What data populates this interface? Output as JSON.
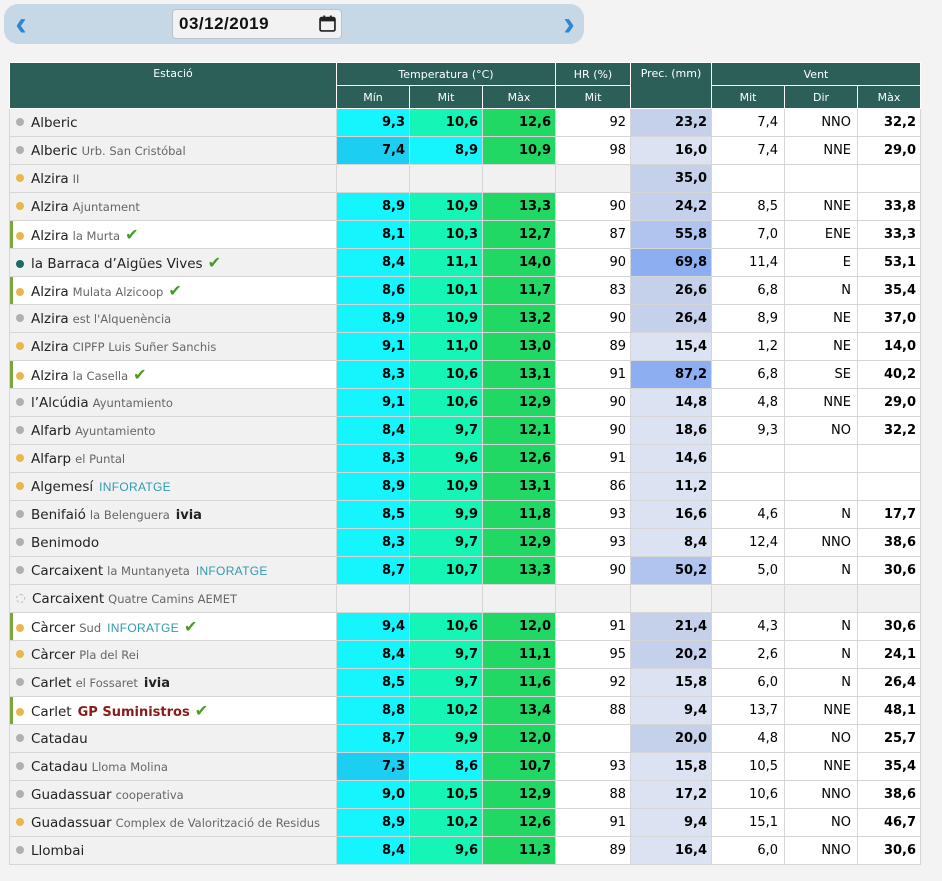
{
  "date": "03/12/2019",
  "icons": {
    "prev": "chevron-left-icon",
    "next": "chevron-right-icon",
    "calendar": "calendar-icon",
    "check": "check-icon"
  },
  "colors": {
    "header": "#2b5f57",
    "tmin_normal": "#15f5fd",
    "tmin_low": "#1bcef2",
    "tmid_normal": "#15f5b5",
    "tmid_low": "#15f5fd",
    "tmax": "#22d864",
    "prec_light": "#dbe3f2",
    "prec_mid": "#c5d0ea",
    "prec_high": "#b1c4ef",
    "prec_max": "#8eaef2",
    "highlight": "#7aa640"
  },
  "headers": {
    "estacio": "Estació",
    "temp": "Temperatura (°C)",
    "hr": "HR (%)",
    "prec": "Prec. (mm)",
    "vent": "Vent",
    "min": "Mín",
    "mit": "Mit",
    "max": "Màx",
    "hr_mit": "Mit",
    "vent_mit": "Mit",
    "vent_dir": "Dir",
    "vent_max": "Màx"
  },
  "rows": [
    {
      "station": "Alberic",
      "loc": "",
      "brand": "",
      "check": false,
      "dot": "gray",
      "hl": false,
      "tmin": "9,3",
      "tmid": "10,6",
      "tmax": "12,6",
      "hr": "92",
      "prec": "23,2",
      "pcol": "mid",
      "vmit": "7,4",
      "vdir": "NNO",
      "vmax": "32,2",
      "cold": false
    },
    {
      "station": "Alberic",
      "loc": "Urb. San Cristóbal",
      "brand": "",
      "check": false,
      "dot": "gray",
      "hl": false,
      "tmin": "7,4",
      "tmid": "8,9",
      "tmax": "10,9",
      "hr": "98",
      "prec": "16,0",
      "pcol": "light",
      "vmit": "7,4",
      "vdir": "NNE",
      "vmax": "29,0",
      "cold": true
    },
    {
      "station": "Alzira",
      "loc": "II",
      "brand": "",
      "check": false,
      "dot": "yellow",
      "hl": false,
      "tmin": "",
      "tmid": "",
      "tmax": "",
      "hr": "",
      "prec": "35,0",
      "pcol": "mid",
      "vmit": "",
      "vdir": "",
      "vmax": "",
      "cold": false,
      "empty": true
    },
    {
      "station": "Alzira",
      "loc": "Ajuntament",
      "brand": "",
      "check": false,
      "dot": "yellow",
      "hl": false,
      "tmin": "8,9",
      "tmid": "10,9",
      "tmax": "13,3",
      "hr": "90",
      "prec": "24,2",
      "pcol": "mid",
      "vmit": "8,5",
      "vdir": "NNE",
      "vmax": "33,8",
      "cold": false
    },
    {
      "station": "Alzira",
      "loc": "la Murta",
      "brand": "",
      "check": true,
      "dot": "yellow",
      "hl": true,
      "tmin": "8,1",
      "tmid": "10,3",
      "tmax": "12,7",
      "hr": "87",
      "prec": "55,8",
      "pcol": "high",
      "vmit": "7,0",
      "vdir": "ENE",
      "vmax": "33,3",
      "cold": false
    },
    {
      "station": "la Barraca d’Aigües Vives",
      "loc": "",
      "brand": "",
      "check": true,
      "dot": "teal",
      "hl": false,
      "tmin": "8,4",
      "tmid": "11,1",
      "tmax": "14,0",
      "hr": "90",
      "prec": "69,8",
      "pcol": "max",
      "vmit": "11,4",
      "vdir": "E",
      "vmax": "53,1",
      "cold": false
    },
    {
      "station": "Alzira",
      "loc": "Mulata Alzicoop",
      "brand": "",
      "check": true,
      "dot": "yellow",
      "hl": true,
      "tmin": "8,6",
      "tmid": "10,1",
      "tmax": "11,7",
      "hr": "83",
      "prec": "26,6",
      "pcol": "mid",
      "vmit": "6,8",
      "vdir": "N",
      "vmax": "35,4",
      "cold": false
    },
    {
      "station": "Alzira",
      "loc": "est l'Alquenència",
      "brand": "",
      "check": false,
      "dot": "gray",
      "hl": false,
      "tmin": "8,9",
      "tmid": "10,9",
      "tmax": "13,2",
      "hr": "90",
      "prec": "26,4",
      "pcol": "mid",
      "vmit": "8,9",
      "vdir": "NE",
      "vmax": "37,0",
      "cold": false
    },
    {
      "station": "Alzira",
      "loc": "CIPFP Luis Suñer Sanchis",
      "brand": "",
      "check": false,
      "dot": "yellow",
      "hl": false,
      "tmin": "9,1",
      "tmid": "11,0",
      "tmax": "13,0",
      "hr": "89",
      "prec": "15,4",
      "pcol": "light",
      "vmit": "1,2",
      "vdir": "NE",
      "vmax": "14,0",
      "cold": false
    },
    {
      "station": "Alzira",
      "loc": "la Casella",
      "brand": "",
      "check": true,
      "dot": "yellow",
      "hl": true,
      "tmin": "8,3",
      "tmid": "10,6",
      "tmax": "13,1",
      "hr": "91",
      "prec": "87,2",
      "pcol": "max",
      "vmit": "6,8",
      "vdir": "SE",
      "vmax": "40,2",
      "cold": false
    },
    {
      "station": "l’Alcúdia",
      "loc": "Ayuntamiento",
      "brand": "",
      "check": false,
      "dot": "gray",
      "hl": false,
      "tmin": "9,1",
      "tmid": "10,6",
      "tmax": "12,9",
      "hr": "90",
      "prec": "14,8",
      "pcol": "light",
      "vmit": "4,8",
      "vdir": "NNE",
      "vmax": "29,0",
      "cold": false
    },
    {
      "station": "Alfarb",
      "loc": "Ayuntamiento",
      "brand": "",
      "check": false,
      "dot": "gray",
      "hl": false,
      "tmin": "8,4",
      "tmid": "9,7",
      "tmax": "12,1",
      "hr": "90",
      "prec": "18,6",
      "pcol": "light",
      "vmit": "9,3",
      "vdir": "NO",
      "vmax": "32,2",
      "cold": false
    },
    {
      "station": "Alfarp",
      "loc": "el Puntal",
      "brand": "",
      "check": false,
      "dot": "yellow",
      "hl": false,
      "tmin": "8,3",
      "tmid": "9,6",
      "tmax": "12,6",
      "hr": "91",
      "prec": "14,6",
      "pcol": "light",
      "vmit": "",
      "vdir": "",
      "vmax": "",
      "cold": false
    },
    {
      "station": "Algemesí",
      "loc": "",
      "brand": "INFORATGE",
      "check": false,
      "dot": "yellow",
      "hl": false,
      "tmin": "8,9",
      "tmid": "10,9",
      "tmax": "13,1",
      "hr": "86",
      "prec": "11,2",
      "pcol": "light",
      "vmit": "",
      "vdir": "",
      "vmax": "",
      "cold": false
    },
    {
      "station": "Benifaió",
      "loc": "la Belenguera",
      "brand": "ivia",
      "check": false,
      "dot": "gray",
      "hl": false,
      "tmin": "8,5",
      "tmid": "9,9",
      "tmax": "11,8",
      "hr": "93",
      "prec": "16,6",
      "pcol": "light",
      "vmit": "4,6",
      "vdir": "N",
      "vmax": "17,7",
      "cold": false
    },
    {
      "station": "Benimodo",
      "loc": "",
      "brand": "",
      "check": false,
      "dot": "gray",
      "hl": false,
      "tmin": "8,3",
      "tmid": "9,7",
      "tmax": "12,9",
      "hr": "93",
      "prec": "8,4",
      "pcol": "light",
      "vmit": "12,4",
      "vdir": "NNO",
      "vmax": "38,6",
      "cold": false
    },
    {
      "station": "Carcaixent",
      "loc": "la Muntanyeta",
      "brand": "INFORATGE",
      "check": false,
      "dot": "gray",
      "hl": false,
      "tmin": "8,7",
      "tmid": "10,7",
      "tmax": "13,3",
      "hr": "90",
      "prec": "50,2",
      "pcol": "high",
      "vmit": "5,0",
      "vdir": "N",
      "vmax": "30,6",
      "cold": false
    },
    {
      "station": "Carcaixent",
      "loc": "Quatre Camins AEMET",
      "brand": "",
      "check": false,
      "dot": "empty",
      "hl": false,
      "tmin": "",
      "tmid": "",
      "tmax": "",
      "hr": "",
      "prec": "",
      "pcol": "none",
      "vmit": "",
      "vdir": "",
      "vmax": "",
      "cold": false,
      "empty": true
    },
    {
      "station": "Càrcer",
      "loc": "Sud",
      "brand": "INFORATGE",
      "check": true,
      "dot": "yellow",
      "hl": true,
      "tmin": "9,4",
      "tmid": "10,6",
      "tmax": "12,0",
      "hr": "91",
      "prec": "21,4",
      "pcol": "mid",
      "vmit": "4,3",
      "vdir": "N",
      "vmax": "30,6",
      "cold": false
    },
    {
      "station": "Càrcer",
      "loc": "Pla del Rei",
      "brand": "",
      "check": false,
      "dot": "yellow",
      "hl": false,
      "tmin": "8,4",
      "tmid": "9,7",
      "tmax": "11,1",
      "hr": "95",
      "prec": "20,2",
      "pcol": "mid",
      "vmit": "2,6",
      "vdir": "N",
      "vmax": "24,1",
      "cold": false
    },
    {
      "station": "Carlet",
      "loc": "el Fossaret",
      "brand": "ivia",
      "check": false,
      "dot": "gray",
      "hl": false,
      "tmin": "8,5",
      "tmid": "9,7",
      "tmax": "11,6",
      "hr": "92",
      "prec": "15,8",
      "pcol": "light",
      "vmit": "6,0",
      "vdir": "N",
      "vmax": "26,4",
      "cold": false
    },
    {
      "station": "Carlet",
      "loc": "",
      "brand": "GP",
      "check": true,
      "dot": "yellow",
      "hl": true,
      "tmin": "8,8",
      "tmid": "10,2",
      "tmax": "13,4",
      "hr": "88",
      "prec": "9,4",
      "pcol": "light",
      "vmit": "13,7",
      "vdir": "NNE",
      "vmax": "48,1",
      "cold": false
    },
    {
      "station": "Catadau",
      "loc": "",
      "brand": "",
      "check": false,
      "dot": "gray",
      "hl": false,
      "tmin": "8,7",
      "tmid": "9,9",
      "tmax": "12,0",
      "hr": "",
      "prec": "20,0",
      "pcol": "mid",
      "vmit": "4,8",
      "vdir": "NO",
      "vmax": "25,7",
      "cold": false
    },
    {
      "station": "Catadau",
      "loc": "Lloma Molina",
      "brand": "",
      "check": false,
      "dot": "gray",
      "hl": false,
      "tmin": "7,3",
      "tmid": "8,6",
      "tmax": "10,7",
      "hr": "93",
      "prec": "15,8",
      "pcol": "light",
      "vmit": "10,5",
      "vdir": "NNE",
      "vmax": "35,4",
      "cold": true
    },
    {
      "station": "Guadassuar",
      "loc": "cooperativa",
      "brand": "",
      "check": false,
      "dot": "gray",
      "hl": false,
      "tmin": "9,0",
      "tmid": "10,5",
      "tmax": "12,9",
      "hr": "88",
      "prec": "17,2",
      "pcol": "light",
      "vmit": "10,6",
      "vdir": "NNO",
      "vmax": "38,6",
      "cold": false
    },
    {
      "station": "Guadassuar",
      "loc": "Complex de Valorització de Residus",
      "brand": "",
      "check": false,
      "dot": "yellow",
      "hl": false,
      "tmin": "8,9",
      "tmid": "10,2",
      "tmax": "12,6",
      "hr": "91",
      "prec": "9,4",
      "pcol": "light",
      "vmit": "15,1",
      "vdir": "NO",
      "vmax": "46,7",
      "cold": false
    },
    {
      "station": "Llombai",
      "loc": "",
      "brand": "",
      "check": false,
      "dot": "gray",
      "hl": false,
      "tmin": "8,4",
      "tmid": "9,6",
      "tmax": "11,3",
      "hr": "89",
      "prec": "16,4",
      "pcol": "light",
      "vmit": "6,0",
      "vdir": "NNO",
      "vmax": "30,6",
      "cold": false
    }
  ],
  "brands": {
    "INFORATGE": "INFORATGE",
    "ivia": "ivia",
    "GP": "GP Suministros"
  }
}
